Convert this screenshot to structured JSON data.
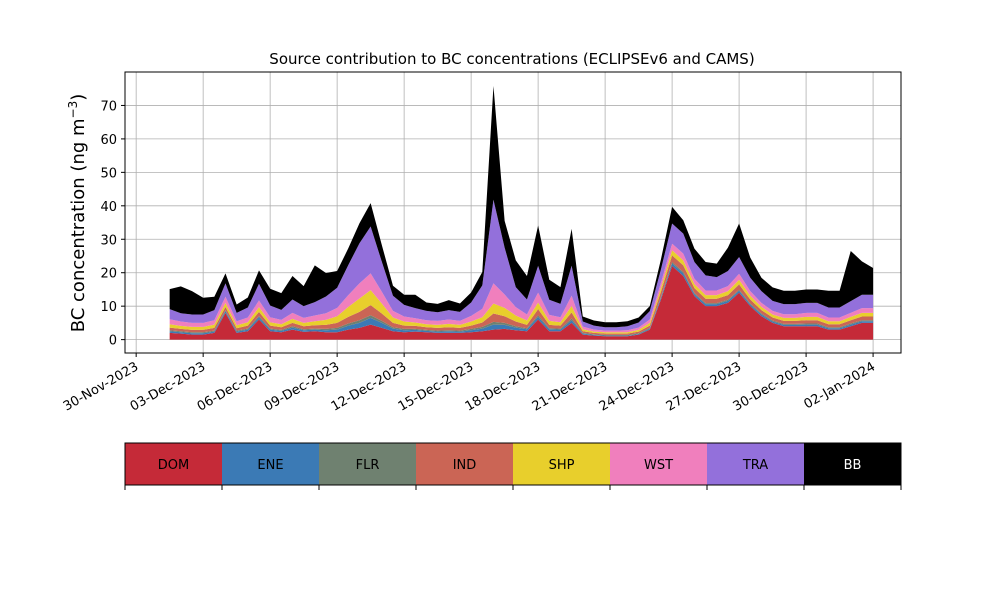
{
  "chart_data": {
    "type": "area",
    "title": "Source contribution to BC concentrations (ECLIPSEv6 and CAMS)",
    "ylabel": "BC concentration (ng m",
    "ylabel_sup": "−3",
    "ylabel_close": ")",
    "xlabel": "",
    "xlim": [
      "2023-11-29T12:00",
      "2024-01-03T06:00"
    ],
    "ylim": [
      -4,
      80
    ],
    "grid": true,
    "stacked": true,
    "y_ticks": [
      0,
      10,
      20,
      30,
      40,
      50,
      60,
      70
    ],
    "x_ticks": [
      {
        "date": "2023-11-30",
        "label": "30-Nov-2023"
      },
      {
        "date": "2023-12-03",
        "label": "03-Dec-2023"
      },
      {
        "date": "2023-12-06",
        "label": "06-Dec-2023"
      },
      {
        "date": "2023-12-09",
        "label": "09-Dec-2023"
      },
      {
        "date": "2023-12-12",
        "label": "12-Dec-2023"
      },
      {
        "date": "2023-12-15",
        "label": "15-Dec-2023"
      },
      {
        "date": "2023-12-18",
        "label": "18-Dec-2023"
      },
      {
        "date": "2023-12-21",
        "label": "21-Dec-2023"
      },
      {
        "date": "2023-12-24",
        "label": "24-Dec-2023"
      },
      {
        "date": "2023-12-27",
        "label": "27-Dec-2023"
      },
      {
        "date": "2023-12-30",
        "label": "30-Dec-2023"
      },
      {
        "date": "2024-01-02",
        "label": "02-Jan-2024"
      }
    ],
    "x": [
      "2023-12-01T12:00",
      "2023-12-02T00:00",
      "2023-12-02T12:00",
      "2023-12-03T00:00",
      "2023-12-03T12:00",
      "2023-12-04T00:00",
      "2023-12-04T12:00",
      "2023-12-05T00:00",
      "2023-12-05T12:00",
      "2023-12-06T00:00",
      "2023-12-06T12:00",
      "2023-12-07T00:00",
      "2023-12-07T12:00",
      "2023-12-08T00:00",
      "2023-12-08T12:00",
      "2023-12-09T00:00",
      "2023-12-09T12:00",
      "2023-12-10T00:00",
      "2023-12-10T12:00",
      "2023-12-11T00:00",
      "2023-12-11T12:00",
      "2023-12-12T00:00",
      "2023-12-12T12:00",
      "2023-12-13T00:00",
      "2023-12-13T12:00",
      "2023-12-14T00:00",
      "2023-12-14T12:00",
      "2023-12-15T00:00",
      "2023-12-15T12:00",
      "2023-12-16T00:00",
      "2023-12-16T12:00",
      "2023-12-17T00:00",
      "2023-12-17T12:00",
      "2023-12-18T00:00",
      "2023-12-18T12:00",
      "2023-12-19T00:00",
      "2023-12-19T12:00",
      "2023-12-20T00:00",
      "2023-12-20T12:00",
      "2023-12-21T00:00",
      "2023-12-21T12:00",
      "2023-12-22T00:00",
      "2023-12-22T12:00",
      "2023-12-23T00:00",
      "2023-12-23T12:00",
      "2023-12-24T00:00",
      "2023-12-24T12:00",
      "2023-12-25T00:00",
      "2023-12-25T12:00",
      "2023-12-26T00:00",
      "2023-12-26T12:00",
      "2023-12-27T00:00",
      "2023-12-27T12:00",
      "2023-12-28T00:00",
      "2023-12-28T12:00",
      "2023-12-29T00:00",
      "2023-12-29T12:00",
      "2023-12-30T00:00",
      "2023-12-30T12:00",
      "2023-12-31T00:00",
      "2023-12-31T12:00",
      "2024-01-01T00:00",
      "2024-01-01T12:00",
      "2024-01-02T00:00"
    ],
    "series": [
      {
        "name": "DOM",
        "color": "#c52a38",
        "values": [
          2,
          1.8,
          1.5,
          1.5,
          2,
          8,
          2,
          2.5,
          6,
          2.5,
          2.2,
          3,
          2.3,
          2.5,
          2.2,
          2.2,
          3,
          3.5,
          4.5,
          3.5,
          2.5,
          2.2,
          2.4,
          2.2,
          2,
          2,
          2,
          2.2,
          2.5,
          3,
          3.2,
          2.8,
          2.5,
          6,
          2.5,
          2.5,
          5,
          1.5,
          1.2,
          1,
          1,
          1,
          1.5,
          3,
          12,
          22,
          19,
          13,
          10,
          10,
          11,
          14,
          10,
          7,
          5,
          4,
          4,
          4,
          4,
          3,
          3,
          4,
          5,
          5
        ]
      },
      {
        "name": "ENE",
        "color": "#3b7ab5",
        "values": [
          0.5,
          0.4,
          0.4,
          0.4,
          0.4,
          0.5,
          0.4,
          0.5,
          0.7,
          0.5,
          0.4,
          0.6,
          0.5,
          0.5,
          0.6,
          0.8,
          1.2,
          1.5,
          2,
          1.5,
          0.8,
          0.6,
          0.5,
          0.4,
          0.4,
          0.5,
          0.4,
          0.6,
          0.8,
          1.5,
          1.2,
          0.8,
          0.6,
          0.8,
          0.6,
          0.5,
          0.8,
          0.3,
          0.2,
          0.2,
          0.2,
          0.2,
          0.2,
          0.3,
          0.5,
          0.8,
          0.8,
          0.6,
          0.6,
          0.6,
          0.6,
          0.6,
          0.5,
          0.5,
          0.4,
          0.4,
          0.4,
          0.5,
          0.5,
          0.4,
          0.4,
          0.5,
          0.5,
          0.5
        ]
      },
      {
        "name": "FLR",
        "color": "#6f8170",
        "values": [
          0.3,
          0.3,
          0.3,
          0.3,
          0.3,
          0.3,
          0.3,
          0.3,
          0.4,
          0.3,
          0.3,
          0.4,
          0.3,
          0.3,
          0.4,
          0.5,
          0.6,
          0.8,
          0.8,
          0.6,
          0.4,
          0.4,
          0.3,
          0.3,
          0.3,
          0.3,
          0.3,
          0.4,
          0.5,
          0.8,
          0.6,
          0.4,
          0.3,
          0.5,
          0.3,
          0.3,
          0.5,
          0.2,
          0.2,
          0.2,
          0.2,
          0.2,
          0.2,
          0.2,
          0.3,
          0.4,
          0.4,
          0.3,
          0.3,
          0.3,
          0.3,
          0.3,
          0.3,
          0.3,
          0.3,
          0.3,
          0.3,
          0.3,
          0.3,
          0.3,
          0.3,
          0.3,
          0.3,
          0.3
        ]
      },
      {
        "name": "IND",
        "color": "#cb6555",
        "values": [
          0.8,
          0.7,
          0.7,
          0.7,
          0.8,
          1,
          0.7,
          0.9,
          1.2,
          0.9,
          0.8,
          1,
          0.9,
          1,
          1.2,
          1.5,
          2,
          2.5,
          3,
          2.2,
          1.3,
          1,
          0.9,
          0.8,
          0.8,
          0.9,
          0.8,
          1,
          1.3,
          2.5,
          2,
          1.4,
          1,
          1.8,
          1,
          0.9,
          1.8,
          0.5,
          0.4,
          0.4,
          0.4,
          0.4,
          0.5,
          0.7,
          1.5,
          2,
          2,
          1.5,
          1.3,
          1.3,
          1.4,
          1.6,
          1.2,
          1,
          0.9,
          0.9,
          0.9,
          1,
          1,
          0.9,
          0.9,
          1,
          1.1,
          1.1
        ]
      },
      {
        "name": "SHP",
        "color": "#e8cf2c",
        "values": [
          1,
          0.9,
          0.9,
          0.9,
          1,
          1.2,
          0.9,
          1,
          1.4,
          1,
          0.9,
          1.2,
          1,
          1.2,
          1.5,
          2,
          3,
          4,
          4.5,
          3,
          1.6,
          1.2,
          1,
          0.9,
          0.9,
          1,
          0.9,
          1.2,
          1.6,
          3,
          2.5,
          1.8,
          1.3,
          2,
          1.2,
          1,
          2,
          0.6,
          0.4,
          0.4,
          0.4,
          0.4,
          0.5,
          0.8,
          1.2,
          1.5,
          1.5,
          1.2,
          1.1,
          1.1,
          1.2,
          1.4,
          1.1,
          1,
          0.9,
          0.9,
          0.9,
          1,
          1,
          0.9,
          0.9,
          1,
          1.1,
          1.1
        ]
      },
      {
        "name": "WST",
        "color": "#f07fbd",
        "values": [
          1.5,
          1.3,
          1.2,
          1.2,
          1.3,
          1.8,
          1.2,
          1.4,
          2,
          1.5,
          1.3,
          1.8,
          1.5,
          1.7,
          2,
          2.5,
          3.5,
          4.5,
          5,
          3.5,
          2,
          1.5,
          1.3,
          1.2,
          1.2,
          1.3,
          1.2,
          1.7,
          2.5,
          6,
          4,
          2.5,
          1.8,
          3,
          1.8,
          1.5,
          3,
          0.8,
          0.6,
          0.5,
          0.5,
          0.6,
          0.7,
          1,
          1.5,
          2,
          2,
          1.6,
          1.4,
          1.4,
          1.5,
          1.8,
          1.4,
          1.2,
          1.1,
          1.1,
          1.1,
          1.2,
          1.2,
          1.1,
          1.1,
          1.2,
          1.4,
          1.4
        ]
      },
      {
        "name": "TRA",
        "color": "#9370db",
        "values": [
          3,
          2.5,
          2.5,
          2.5,
          3,
          4,
          2.5,
          3,
          5,
          3.5,
          3,
          4,
          3.5,
          4,
          5,
          6,
          9,
          12,
          14,
          9,
          4.5,
          3.5,
          3,
          2.8,
          2.6,
          2.8,
          2.7,
          4,
          7,
          25,
          14,
          6,
          4.5,
          8,
          4.5,
          4,
          9,
          1.5,
          1.2,
          1,
          1,
          1.2,
          1.5,
          2.5,
          4,
          6,
          6,
          5,
          4.5,
          4,
          4.5,
          5,
          4,
          3.5,
          3,
          3,
          3,
          3,
          3,
          3,
          3,
          3.5,
          4,
          4
        ]
      },
      {
        "name": "BB",
        "color": "#000000",
        "values": [
          6,
          8,
          7,
          5,
          4,
          3,
          2.5,
          3,
          4,
          5,
          5,
          7,
          6,
          11,
          7,
          5,
          5,
          6,
          7,
          5,
          3,
          3,
          4,
          2.5,
          2.5,
          3,
          2.5,
          3,
          4,
          34,
          8,
          8,
          7,
          12,
          6,
          5,
          11,
          1.5,
          1.5,
          1.5,
          1.5,
          1.5,
          1.5,
          1.5,
          3,
          5,
          4,
          4,
          4,
          4,
          7,
          10,
          6,
          4,
          4,
          4,
          4,
          4,
          4,
          5,
          5,
          15,
          10,
          8
        ]
      }
    ],
    "legend": {
      "placement": "bottom",
      "text_colors": [
        "#000000",
        "#000000",
        "#000000",
        "#000000",
        "#000000",
        "#000000",
        "#000000",
        "#ffffff"
      ]
    }
  }
}
